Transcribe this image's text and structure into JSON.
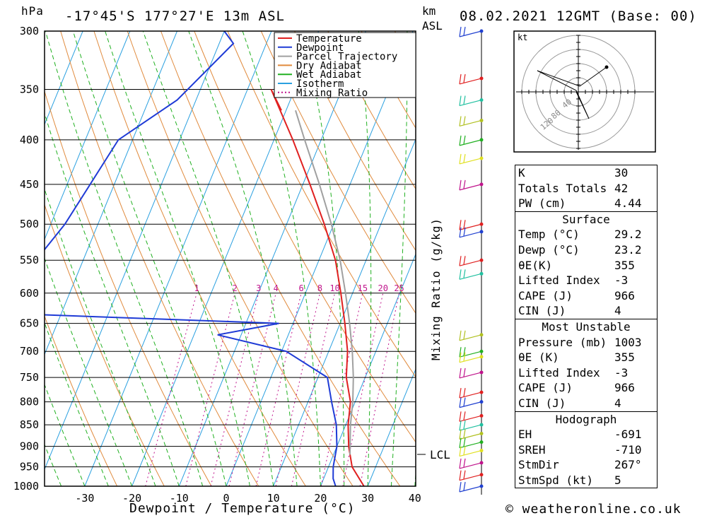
{
  "header": {
    "pressure_unit": "hPa",
    "location": "-17°45'S 177°27'E 13m ASL",
    "height_unit_line1": "km",
    "height_unit_line2": "ASL",
    "datetime": "08.02.2021 12GMT (Base: 00)"
  },
  "footer": {
    "credit": "© weatheronline.co.uk"
  },
  "chart_data": {
    "type": "line",
    "subtype": "skew-T log-P diagram",
    "xlabel": "Dewpoint / Temperature (°C)",
    "ylabel": "hPa",
    "secondary_label": "Mixing Ratio (g/kg)",
    "x_ticks": [
      -30,
      -20,
      -10,
      0,
      10,
      20,
      30,
      40
    ],
    "y_ticks": [
      300,
      350,
      400,
      450,
      500,
      550,
      600,
      650,
      700,
      750,
      800,
      850,
      900,
      950,
      1000
    ],
    "mixing_ratio_labels": [
      "1",
      "2",
      "3",
      "4",
      "6",
      "8",
      "10",
      "15",
      "20",
      "25"
    ],
    "lcl_label": "LCL",
    "lcl_pressure": 920,
    "legend": [
      "Temperature",
      "Dewpoint",
      "Parcel Trajectory",
      "Dry Adiabat",
      "Wet Adiabat",
      "Isotherm",
      "Mixing Ratio"
    ],
    "legend_position": "top-center",
    "colors": {
      "temperature": "#e02020",
      "dewpoint": "#1f3bd6",
      "parcel": "#a0a0a0",
      "dry_adiabat": "#e08a3c",
      "wet_adiabat": "#21b021",
      "isotherm": "#2aa0e0",
      "mixing_ratio": "#c0148c"
    },
    "series": [
      {
        "name": "Temperature",
        "points": [
          [
            1000,
            29.2
          ],
          [
            950,
            25
          ],
          [
            900,
            22.5
          ],
          [
            850,
            20.5
          ],
          [
            800,
            19
          ],
          [
            750,
            16
          ],
          [
            700,
            14
          ],
          [
            650,
            11
          ],
          [
            600,
            7.5
          ],
          [
            550,
            3.5
          ],
          [
            500,
            -2
          ],
          [
            450,
            -8.5
          ],
          [
            400,
            -16
          ],
          [
            350,
            -25
          ],
          [
            370,
            -21
          ]
        ]
      },
      {
        "name": "Dewpoint",
        "points": [
          [
            1000,
            23.2
          ],
          [
            980,
            22
          ],
          [
            950,
            21
          ],
          [
            900,
            20
          ],
          [
            850,
            18
          ],
          [
            800,
            15
          ],
          [
            750,
            12
          ],
          [
            700,
            1
          ],
          [
            670,
            -15
          ],
          [
            650,
            -3
          ],
          [
            635,
            -55
          ],
          [
            610,
            -62
          ],
          [
            580,
            -62
          ],
          [
            550,
            -60
          ],
          [
            500,
            -57
          ],
          [
            400,
            -53
          ],
          [
            360,
            -44
          ],
          [
            310,
            -37
          ],
          [
            300,
            -40
          ]
        ]
      },
      {
        "name": "Parcel Trajectory",
        "points": [
          [
            920,
            23.5
          ],
          [
            850,
            21
          ],
          [
            800,
            19.5
          ],
          [
            750,
            17.5
          ],
          [
            700,
            15
          ],
          [
            650,
            12
          ],
          [
            600,
            8.5
          ],
          [
            550,
            4.5
          ],
          [
            500,
            -0.5
          ],
          [
            450,
            -6.5
          ],
          [
            400,
            -13.5
          ],
          [
            370,
            -18
          ]
        ]
      }
    ],
    "hodograph": {
      "unit_label": "kt",
      "ring_labels": [
        "40",
        "80",
        "120"
      ]
    },
    "indices": {
      "k": {
        "label": "K",
        "value": "30"
      },
      "totals": {
        "label": "Totals Totals",
        "value": "42"
      },
      "pw": {
        "label": "PW (cm)",
        "value": "4.44"
      },
      "surface_title": "Surface",
      "surface": [
        {
          "label": "Temp (°C)",
          "value": "29.2"
        },
        {
          "label": "Dewp (°C)",
          "value": "23.2"
        },
        {
          "label": "θE(K)",
          "value": "355"
        },
        {
          "label": "Lifted Index",
          "value": "-3"
        },
        {
          "label": "CAPE (J)",
          "value": "966"
        },
        {
          "label": "CIN (J)",
          "value": "4"
        }
      ],
      "mu_title": "Most Unstable",
      "mu": [
        {
          "label": "Pressure (mb)",
          "value": "1003"
        },
        {
          "label": "θE (K)",
          "value": "355"
        },
        {
          "label": "Lifted Index",
          "value": "-3"
        },
        {
          "label": "CAPE (J)",
          "value": "966"
        },
        {
          "label": "CIN (J)",
          "value": "4"
        }
      ],
      "hodo_title": "Hodograph",
      "hodo": [
        {
          "label": "EH",
          "value": "-691"
        },
        {
          "label": "SREH",
          "value": "-710"
        },
        {
          "label": "StmDir",
          "value": "267°"
        },
        {
          "label": "StmSpd (kt)",
          "value": "5"
        }
      ]
    }
  }
}
